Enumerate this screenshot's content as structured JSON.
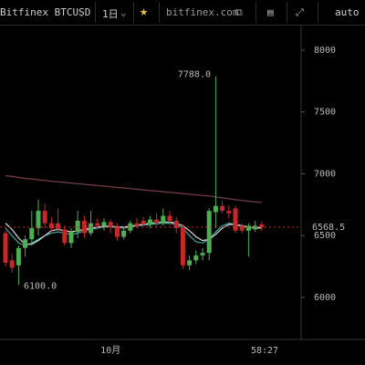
{
  "toolbar": {
    "symbol": "Bitfinex BTCUSD",
    "interval": "1日",
    "site": "bitfinex.com",
    "scale_mode": "auto"
  },
  "chart_data": {
    "type": "candlestick",
    "categories": [
      null,
      null,
      null,
      null,
      null,
      null,
      null,
      null,
      null,
      null,
      null,
      null,
      null,
      null,
      null,
      null,
      "10月",
      null,
      null,
      null,
      null,
      null,
      null,
      null,
      null,
      null,
      null,
      null,
      null,
      null,
      null,
      null,
      null,
      null,
      null,
      null,
      null,
      null,
      null,
      null
    ],
    "open": [
      6520,
      6300,
      6260,
      6400,
      6470,
      6560,
      6700,
      6600,
      6600,
      6550,
      6440,
      6530,
      6620,
      6520,
      6600,
      6580,
      6610,
      6570,
      6490,
      6540,
      6600,
      6620,
      6590,
      6630,
      6600,
      6660,
      6620,
      6560,
      6260,
      6300,
      6340,
      6360,
      6690,
      6740,
      6700,
      6720,
      6580,
      6540,
      6550,
      6590
    ],
    "high": [
      6540,
      6350,
      6420,
      6500,
      6700,
      6790,
      6760,
      6650,
      6720,
      6580,
      6560,
      6700,
      6660,
      6700,
      6640,
      6640,
      6630,
      6600,
      6560,
      6620,
      6640,
      6650,
      6660,
      6680,
      6720,
      6700,
      6650,
      6590,
      6340,
      6380,
      6400,
      6720,
      7788,
      6780,
      6740,
      6740,
      6600,
      6600,
      6620,
      6610
    ],
    "low": [
      6250,
      6200,
      6100,
      6330,
      6420,
      6500,
      6560,
      6530,
      6520,
      6420,
      6400,
      6480,
      6480,
      6500,
      6560,
      6540,
      6520,
      6460,
      6470,
      6520,
      6560,
      6580,
      6560,
      6570,
      6580,
      6590,
      6520,
      6230,
      6220,
      6270,
      6300,
      6300,
      6560,
      6680,
      6640,
      6520,
      6520,
      6330,
      6530,
      6540
    ],
    "close": [
      6280,
      6240,
      6400,
      6470,
      6560,
      6700,
      6600,
      6560,
      6550,
      6440,
      6530,
      6620,
      6520,
      6600,
      6580,
      6610,
      6570,
      6490,
      6540,
      6600,
      6580,
      6590,
      6630,
      6600,
      6660,
      6620,
      6560,
      6260,
      6300,
      6340,
      6360,
      6700,
      6740,
      6700,
      6680,
      6540,
      6540,
      6580,
      6580,
      6568.5
    ],
    "up_color": "#4caf50",
    "down_color": "#c62828",
    "series": [
      {
        "color": "#7a3b55",
        "values": [
          6985,
          6978,
          6970,
          6963,
          6958,
          6952,
          6946,
          6940,
          6935,
          6930,
          6925,
          6920,
          6915,
          6910,
          6905,
          6900,
          6895,
          6890,
          6885,
          6880,
          6875,
          6870,
          6865,
          6860,
          6855,
          6850,
          6845,
          6840,
          6835,
          6830,
          6825,
          6820,
          6812,
          6805,
          6798,
          6790,
          6784,
          6778,
          6772,
          6768
        ]
      },
      {
        "color": "#3aa6a6",
        "values": [
          6560,
          6500,
          6440,
          6420,
          6440,
          6470,
          6500,
          6520,
          6530,
          6520,
          6510,
          6520,
          6540,
          6550,
          6560,
          6570,
          6570,
          6565,
          6560,
          6570,
          6580,
          6585,
          6590,
          6595,
          6600,
          6600,
          6590,
          6560,
          6500,
          6450,
          6440,
          6470,
          6530,
          6580,
          6600,
          6590,
          6575,
          6565,
          6560,
          6560
        ]
      },
      {
        "color": "#d8d8d8",
        "values": [
          6600,
          6550,
          6480,
          6430,
          6430,
          6460,
          6500,
          6540,
          6550,
          6540,
          6530,
          6540,
          6550,
          6560,
          6570,
          6575,
          6575,
          6570,
          6570,
          6575,
          6585,
          6590,
          6600,
          6605,
          6610,
          6610,
          6600,
          6580,
          6540,
          6490,
          6460,
          6470,
          6510,
          6560,
          6590,
          6590,
          6580,
          6570,
          6565,
          6565
        ]
      }
    ],
    "high_label": {
      "value": 7788,
      "label": "7788.0"
    },
    "low_label": {
      "value": 6100,
      "label": "6100.0"
    },
    "last_price": 6568.5,
    "last_price_color": "#c62828",
    "countdown": "58:27",
    "ylim": [
      5660,
      8199
    ],
    "yticks": [
      6000,
      6500,
      7000,
      7500,
      8000
    ]
  }
}
